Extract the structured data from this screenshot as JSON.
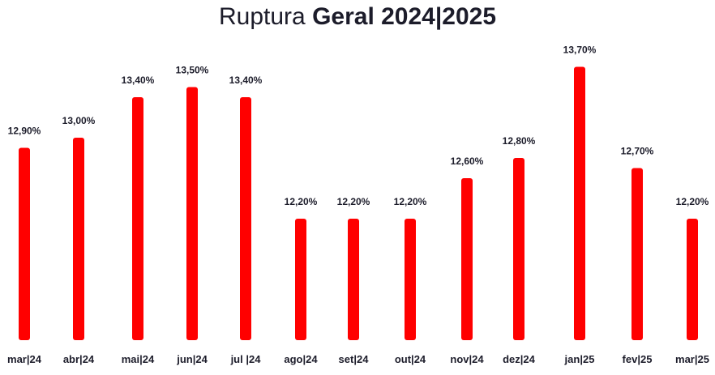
{
  "chart_data": {
    "type": "bar",
    "title_light": "Ruptura ",
    "title_bold": "Geral 2024|2025",
    "categories": [
      "mar|24",
      "abr|24",
      "mai|24",
      "jun|24",
      "jul |24",
      "ago|24",
      "set|24",
      "out|24",
      "nov|24",
      "dez|24",
      "jan|25",
      "fev|25",
      "mar|25"
    ],
    "values": [
      12.9,
      13.0,
      13.4,
      13.5,
      13.4,
      12.2,
      12.2,
      12.2,
      12.6,
      12.8,
      13.7,
      12.7,
      12.2
    ],
    "value_labels": [
      "12,90%",
      "13,00%",
      "13,40%",
      "13,50%",
      "13,40%",
      "12,20%",
      "12,20%",
      "12,20%",
      "12,60%",
      "12,80%",
      "13,70%",
      "12,70%",
      "12,20%"
    ],
    "ylim": [
      11.0,
      13.8
    ],
    "grid": false,
    "colors": {
      "bar": "#ff0000",
      "text": "#1c1c2a"
    }
  }
}
